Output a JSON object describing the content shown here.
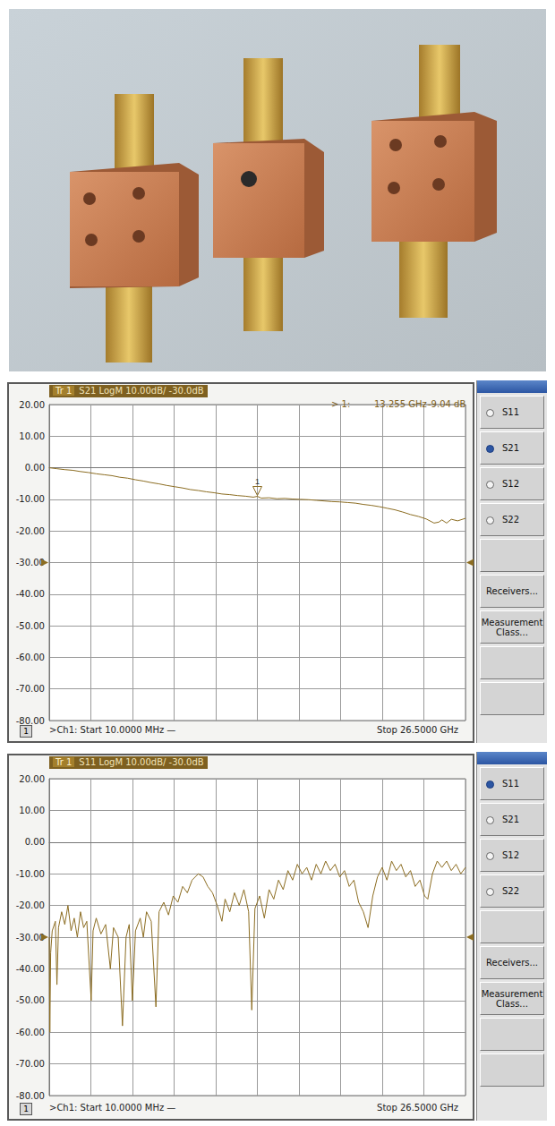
{
  "chart_data": [
    {
      "type": "line",
      "trace_tag": "Tr 1",
      "title": "S21 LogM 10.00dB/ -30.0dB",
      "reference_level": -30,
      "color": "#8c6d22",
      "grid": true,
      "tick_labels": "y",
      "xlim": [
        0.01,
        26.5
      ],
      "xticks": [
        0.01,
        2.659,
        5.308,
        7.957,
        10.606,
        13.255,
        15.904,
        18.553,
        21.202,
        23.851,
        26.5
      ],
      "ylim": [
        -80,
        20
      ],
      "yticks": [
        {
          "value": -80,
          "label": "-80.00"
        },
        {
          "value": -70,
          "label": "-70.00"
        },
        {
          "value": -60,
          "label": "-60.00"
        },
        {
          "value": -50,
          "label": "-50.00"
        },
        {
          "value": -40,
          "label": "-40.00"
        },
        {
          "value": -30,
          "label": "-30.00"
        },
        {
          "value": -20,
          "label": "-20.00"
        },
        {
          "value": -10,
          "label": "-10.00"
        },
        {
          "value": 0,
          "label": "0.00"
        },
        {
          "value": 10,
          "label": "10.00"
        },
        {
          "value": 20,
          "label": "20.00"
        }
      ],
      "x": [
        0.01,
        0.5,
        1,
        1.5,
        2,
        2.5,
        3,
        3.5,
        4,
        4.5,
        5,
        5.5,
        6,
        6.5,
        7,
        7.5,
        8,
        8.5,
        9,
        9.5,
        10,
        10.5,
        11,
        11.5,
        12,
        12.5,
        13,
        13.255,
        13.5,
        14,
        14.5,
        15,
        15.5,
        16,
        16.5,
        17,
        17.5,
        18,
        18.5,
        19,
        19.5,
        20,
        20.5,
        21,
        21.5,
        22,
        22.5,
        23,
        23.5,
        24,
        24.5,
        24.8,
        25,
        25.3,
        25.6,
        26,
        26.5
      ],
      "values": [
        0,
        -0.3,
        -0.6,
        -0.8,
        -1.2,
        -1.5,
        -1.9,
        -2.2,
        -2.5,
        -3.0,
        -3.3,
        -3.8,
        -4.2,
        -4.7,
        -5.1,
        -5.6,
        -6.0,
        -6.4,
        -6.9,
        -7.2,
        -7.6,
        -7.9,
        -8.3,
        -8.5,
        -8.8,
        -9.0,
        -9.3,
        -9.04,
        -9.6,
        -9.5,
        -9.8,
        -9.7,
        -9.9,
        -10.0,
        -10.1,
        -10.3,
        -10.5,
        -10.7,
        -10.8,
        -11.0,
        -11.2,
        -11.6,
        -11.9,
        -12.3,
        -12.8,
        -13.3,
        -14.0,
        -14.8,
        -15.4,
        -16.2,
        -17.5,
        -17.2,
        -16.5,
        -17.5,
        -16.3,
        -16.8,
        -16.0
      ],
      "annotations": [
        {
          "name": "1",
          "x": 13.255,
          "y": -9.04,
          "readout": [
            "> 1:",
            "13.255 GHz",
            "-9.04 dB"
          ]
        }
      ],
      "footer": {
        "channel": "1",
        "start": ">Ch1: Start 10.0000 MHz —",
        "stop": "Stop 26.5000 GHz"
      },
      "softkeys": {
        "radio": [
          "S11",
          "S21",
          "S12",
          "S22"
        ],
        "selected": "S21",
        "buttons": [
          "Receivers...",
          "Measurement Class..."
        ]
      }
    },
    {
      "type": "line",
      "trace_tag": "Tr 1",
      "title": "S11 LogM 10.00dB/ -30.0dB",
      "reference_level": -30,
      "color": "#8c6d22",
      "grid": true,
      "tick_labels": "y",
      "xlim": [
        0.01,
        26.5
      ],
      "xticks": [
        0.01,
        2.659,
        5.308,
        7.957,
        10.606,
        13.255,
        15.904,
        18.553,
        21.202,
        23.851,
        26.5
      ],
      "ylim": [
        -80,
        20
      ],
      "yticks": [
        {
          "value": -80,
          "label": "-80.00"
        },
        {
          "value": -70,
          "label": "-70.00"
        },
        {
          "value": -60,
          "label": "-60.00"
        },
        {
          "value": -50,
          "label": "-50.00"
        },
        {
          "value": -40,
          "label": "-40.00"
        },
        {
          "value": -30,
          "label": "-30.00"
        },
        {
          "value": -20,
          "label": "-20.00"
        },
        {
          "value": -10,
          "label": "-10.00"
        },
        {
          "value": 0,
          "label": "0.00"
        },
        {
          "value": 10,
          "label": "10.00"
        },
        {
          "value": 20,
          "label": "20.00"
        }
      ],
      "x": [
        0.01,
        0.05,
        0.1,
        0.2,
        0.4,
        0.5,
        0.6,
        0.8,
        1.0,
        1.2,
        1.4,
        1.6,
        1.8,
        2.0,
        2.2,
        2.4,
        2.68,
        2.8,
        3.0,
        3.3,
        3.6,
        3.9,
        4.1,
        4.4,
        4.67,
        4.9,
        5.1,
        5.3,
        5.5,
        5.8,
        6.0,
        6.2,
        6.5,
        6.8,
        7.0,
        7.3,
        7.6,
        7.9,
        8.2,
        8.5,
        8.8,
        9.1,
        9.5,
        9.8,
        10.1,
        10.4,
        10.7,
        11.0,
        11.2,
        11.5,
        11.8,
        12.1,
        12.4,
        12.7,
        12.9,
        13.1,
        13.4,
        13.7,
        14.0,
        14.3,
        14.6,
        14.9,
        15.2,
        15.5,
        15.8,
        16.1,
        16.4,
        16.7,
        17.0,
        17.3,
        17.6,
        17.9,
        18.2,
        18.5,
        18.8,
        19.1,
        19.4,
        19.7,
        20.0,
        20.3,
        20.6,
        20.9,
        21.2,
        21.5,
        21.8,
        22.1,
        22.4,
        22.7,
        23.0,
        23.3,
        23.6,
        23.9,
        24.1,
        24.4,
        24.7,
        25.0,
        25.3,
        25.6,
        25.9,
        26.2,
        26.5
      ],
      "values": [
        -30,
        -60,
        -35,
        -28,
        -25,
        -45,
        -27,
        -22,
        -26,
        -20,
        -28,
        -24,
        -30,
        -22,
        -27,
        -25,
        -50,
        -28,
        -24,
        -29,
        -26,
        -40,
        -27,
        -30,
        -58,
        -30,
        -26,
        -50,
        -28,
        -24,
        -30,
        -22,
        -25,
        -52,
        -22,
        -19,
        -23,
        -17,
        -19,
        -14,
        -16,
        -12,
        -10,
        -11,
        -14,
        -16,
        -20,
        -25,
        -18,
        -22,
        -16,
        -20,
        -15,
        -22,
        -53,
        -21,
        -17,
        -24,
        -15,
        -18,
        -12,
        -15,
        -9,
        -12,
        -7,
        -10,
        -8,
        -12,
        -7,
        -10,
        -6,
        -9,
        -7,
        -11,
        -9,
        -14,
        -12,
        -19,
        -22,
        -27,
        -17,
        -11,
        -8,
        -12,
        -6,
        -9,
        -7,
        -11,
        -9,
        -14,
        -12,
        -17,
        -18,
        -10,
        -6,
        -8,
        -6,
        -9,
        -7,
        -10,
        -8
      ],
      "footer": {
        "channel": "1",
        "start": ">Ch1: Start 10.0000 MHz —",
        "stop": "Stop 26.5000 GHz"
      },
      "softkeys": {
        "radio": [
          "S11",
          "S21",
          "S12",
          "S22"
        ],
        "selected": "S11",
        "buttons": [
          "Receivers...",
          "Measurement Class..."
        ]
      }
    }
  ]
}
